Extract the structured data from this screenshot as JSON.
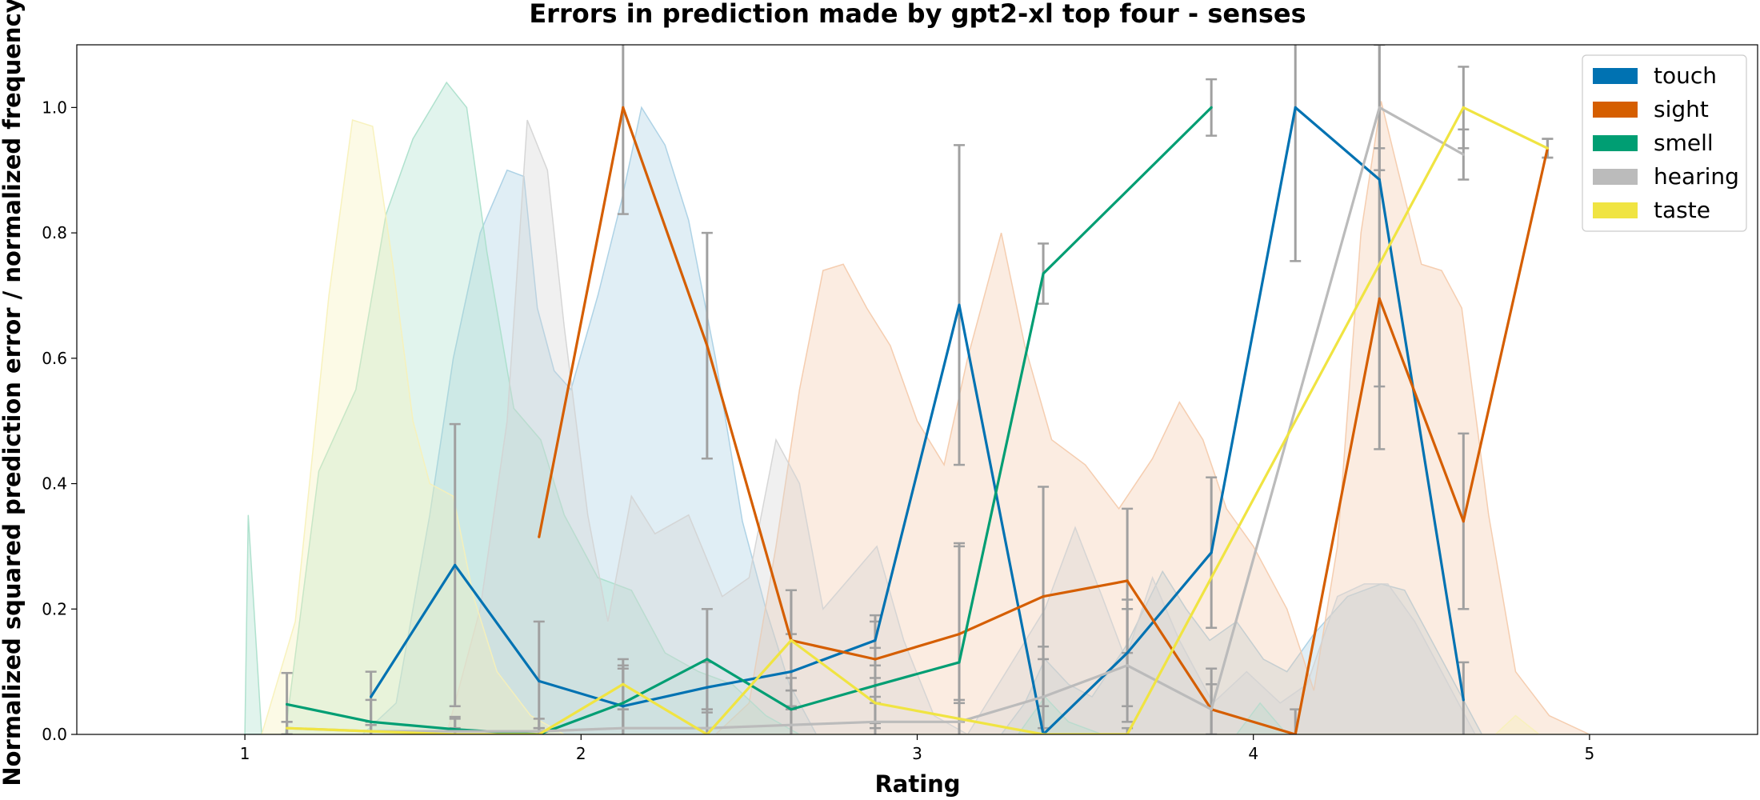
{
  "chart_data": {
    "type": "line",
    "title": "Errors in prediction made by gpt2-xl top four - senses",
    "xlabel": "Rating",
    "ylabel": "Normalized squared prediction error / normalized frequency",
    "xlim": [
      0.5,
      5.5
    ],
    "ylim": [
      0,
      1.1
    ],
    "xticks": [
      "1",
      "2",
      "3",
      "4",
      "5"
    ],
    "yticks": [
      "0.0",
      "0.2",
      "0.4",
      "0.6",
      "0.8",
      "1.0"
    ],
    "grid": false,
    "legend_position": "top-right",
    "series": [
      {
        "name": "touch",
        "color": "#0072b2",
        "x": [
          1.375,
          1.625,
          1.875,
          2.125,
          2.375,
          2.625,
          2.875,
          3.125,
          3.375,
          3.625,
          3.875,
          4.125,
          4.375,
          4.625
        ],
        "y": [
          0.06,
          0.27,
          0.085,
          0.045,
          0.075,
          0.1,
          0.15,
          0.685,
          0.0,
          0.13,
          0.29,
          1.0,
          0.885,
          0.055
        ],
        "error": [
          0.04,
          0.225,
          0.095,
          0.06,
          0.04,
          0.06,
          0.04,
          0.255,
          0.12,
          0.085,
          0.12,
          0.245,
          0.33,
          0.06
        ]
      },
      {
        "name": "sight",
        "color": "#d55e00",
        "x": [
          1.875,
          2.125,
          2.375,
          2.625,
          2.875,
          3.125,
          3.375,
          3.625,
          3.875,
          4.125,
          4.375,
          4.625,
          4.875
        ],
        "y": [
          0.315,
          1.0,
          0.62,
          0.15,
          0.12,
          0.16,
          0.22,
          0.245,
          0.04,
          0.0,
          0.695,
          0.34,
          0.935
        ],
        "error": [
          0.0,
          0.17,
          0.18,
          0.08,
          0.06,
          0.14,
          0.175,
          0.115,
          0.065,
          0.04,
          0.24,
          0.14,
          0.015
        ]
      },
      {
        "name": "smell",
        "color": "#009e73",
        "x": [
          1.125,
          1.375,
          1.625,
          1.875,
          2.125,
          2.375,
          2.625,
          2.875,
          3.125,
          3.375,
          3.875
        ],
        "y": [
          0.048,
          0.02,
          0.008,
          0.0,
          0.05,
          0.12,
          0.04,
          0.078,
          0.115,
          0.735,
          1.0
        ],
        "error": [
          0.05,
          0.035,
          0.02,
          0.01,
          0.06,
          0.08,
          0.05,
          0.06,
          0.19,
          0.048,
          0.045
        ]
      },
      {
        "name": "hearing",
        "color": "#bbbbbb",
        "x": [
          1.125,
          1.375,
          1.625,
          1.875,
          2.125,
          2.375,
          2.625,
          2.875,
          3.125,
          3.375,
          3.625,
          3.875,
          4.375,
          4.625
        ],
        "y": [
          0.01,
          0.005,
          0.005,
          0.005,
          0.01,
          0.01,
          0.015,
          0.02,
          0.02,
          0.06,
          0.11,
          0.04,
          1.0,
          0.925
        ],
        "error": [
          0.01,
          0.01,
          0.02,
          0.02,
          0.03,
          0.03,
          0.03,
          0.03,
          0.03,
          0.08,
          0.09,
          0.04,
          0.1,
          0.04
        ]
      },
      {
        "name": "taste",
        "color": "#f0e442",
        "x": [
          1.125,
          1.375,
          1.625,
          1.875,
          2.125,
          2.375,
          2.625,
          2.875,
          3.125,
          3.375,
          3.625,
          4.625,
          4.875
        ],
        "y": [
          0.01,
          0.005,
          0.0,
          0.0,
          0.08,
          0.0,
          0.15,
          0.05,
          0.025,
          0.0,
          0.0,
          1.0,
          0.935
        ],
        "error": [
          0.01,
          0.01,
          0.01,
          0.01,
          0.04,
          0.01,
          0.08,
          0.04,
          0.03,
          0.01,
          0.01,
          0.065,
          0.015
        ]
      }
    ],
    "density_series": [
      {
        "name": "touch",
        "color": "#a6cee3",
        "points": [
          [
            1.0,
            0
          ],
          [
            1.35,
            0
          ],
          [
            1.45,
            0.05
          ],
          [
            1.55,
            0.35
          ],
          [
            1.62,
            0.6
          ],
          [
            1.7,
            0.8
          ],
          [
            1.78,
            0.9
          ],
          [
            1.83,
            0.89
          ],
          [
            1.87,
            0.68
          ],
          [
            1.92,
            0.58
          ],
          [
            1.97,
            0.55
          ],
          [
            2.05,
            0.7
          ],
          [
            2.12,
            0.85
          ],
          [
            2.18,
            1.0
          ],
          [
            2.25,
            0.94
          ],
          [
            2.32,
            0.82
          ],
          [
            2.4,
            0.6
          ],
          [
            2.48,
            0.34
          ],
          [
            2.55,
            0.2
          ],
          [
            2.62,
            0.08
          ],
          [
            2.7,
            0.0
          ],
          [
            3.25,
            0
          ],
          [
            3.32,
            0.05
          ],
          [
            3.38,
            0.12
          ],
          [
            3.45,
            0.08
          ],
          [
            3.52,
            0.06
          ],
          [
            3.62,
            0.14
          ],
          [
            3.73,
            0.26
          ],
          [
            3.8,
            0.2
          ],
          [
            3.87,
            0.15
          ],
          [
            3.95,
            0.18
          ],
          [
            4.03,
            0.12
          ],
          [
            4.1,
            0.1
          ],
          [
            4.18,
            0.16
          ],
          [
            4.28,
            0.22
          ],
          [
            4.38,
            0.24
          ],
          [
            4.45,
            0.23
          ],
          [
            4.52,
            0.16
          ],
          [
            4.6,
            0.08
          ],
          [
            4.68,
            0.0
          ],
          [
            5.0,
            0
          ]
        ]
      },
      {
        "name": "sight",
        "color": "#f4c9a8",
        "points": [
          [
            2.4,
            0
          ],
          [
            2.5,
            0.05
          ],
          [
            2.58,
            0.3
          ],
          [
            2.65,
            0.55
          ],
          [
            2.72,
            0.74
          ],
          [
            2.78,
            0.75
          ],
          [
            2.85,
            0.68
          ],
          [
            2.92,
            0.62
          ],
          [
            3.0,
            0.5
          ],
          [
            3.08,
            0.43
          ],
          [
            3.15,
            0.6
          ],
          [
            3.25,
            0.8
          ],
          [
            3.32,
            0.62
          ],
          [
            3.4,
            0.47
          ],
          [
            3.5,
            0.43
          ],
          [
            3.6,
            0.36
          ],
          [
            3.7,
            0.44
          ],
          [
            3.78,
            0.53
          ],
          [
            3.85,
            0.47
          ],
          [
            3.92,
            0.36
          ],
          [
            4.0,
            0.3
          ],
          [
            4.1,
            0.2
          ],
          [
            4.18,
            0.07
          ],
          [
            4.25,
            0.3
          ],
          [
            4.32,
            0.8
          ],
          [
            4.38,
            1.01
          ],
          [
            4.43,
            0.9
          ],
          [
            4.5,
            0.75
          ],
          [
            4.56,
            0.74
          ],
          [
            4.62,
            0.68
          ],
          [
            4.7,
            0.35
          ],
          [
            4.78,
            0.1
          ],
          [
            4.88,
            0.03
          ],
          [
            5.0,
            0
          ]
        ]
      },
      {
        "name": "smell",
        "color": "#a9dfca",
        "points": [
          [
            1.0,
            0
          ],
          [
            1.01,
            0.35
          ],
          [
            1.05,
            0
          ],
          [
            1.12,
            0
          ],
          [
            1.22,
            0.42
          ],
          [
            1.33,
            0.55
          ],
          [
            1.42,
            0.83
          ],
          [
            1.5,
            0.95
          ],
          [
            1.6,
            1.04
          ],
          [
            1.66,
            1.0
          ],
          [
            1.72,
            0.77
          ],
          [
            1.8,
            0.52
          ],
          [
            1.88,
            0.47
          ],
          [
            1.95,
            0.35
          ],
          [
            2.05,
            0.25
          ],
          [
            2.15,
            0.23
          ],
          [
            2.25,
            0.13
          ],
          [
            2.35,
            0.1
          ],
          [
            2.45,
            0.08
          ],
          [
            2.55,
            0.03
          ],
          [
            2.65,
            0.0
          ],
          [
            3.3,
            0
          ],
          [
            3.38,
            0.06
          ],
          [
            3.45,
            0.02
          ],
          [
            3.55,
            0
          ],
          [
            3.95,
            0
          ],
          [
            4.02,
            0.05
          ],
          [
            4.1,
            0
          ],
          [
            5.0,
            0
          ]
        ]
      },
      {
        "name": "hearing",
        "color": "#d3d3d3",
        "points": [
          [
            1.6,
            0
          ],
          [
            1.7,
            0.2
          ],
          [
            1.78,
            0.5
          ],
          [
            1.84,
            0.98
          ],
          [
            1.9,
            0.9
          ],
          [
            1.95,
            0.65
          ],
          [
            2.02,
            0.35
          ],
          [
            2.08,
            0.18
          ],
          [
            2.15,
            0.38
          ],
          [
            2.22,
            0.32
          ],
          [
            2.32,
            0.35
          ],
          [
            2.42,
            0.22
          ],
          [
            2.5,
            0.25
          ],
          [
            2.58,
            0.47
          ],
          [
            2.65,
            0.4
          ],
          [
            2.72,
            0.2
          ],
          [
            2.8,
            0.25
          ],
          [
            2.88,
            0.3
          ],
          [
            2.96,
            0.15
          ],
          [
            3.05,
            0.03
          ],
          [
            3.15,
            0
          ],
          [
            3.38,
            0.2
          ],
          [
            3.47,
            0.33
          ],
          [
            3.55,
            0.22
          ],
          [
            3.62,
            0.12
          ],
          [
            3.7,
            0.25
          ],
          [
            3.78,
            0.15
          ],
          [
            3.88,
            0.05
          ],
          [
            3.98,
            0.1
          ],
          [
            4.08,
            0.05
          ],
          [
            4.16,
            0.08
          ],
          [
            4.25,
            0.22
          ],
          [
            4.33,
            0.24
          ],
          [
            4.4,
            0.24
          ],
          [
            4.48,
            0.18
          ],
          [
            4.58,
            0.08
          ],
          [
            4.66,
            0.0
          ],
          [
            5.0,
            0
          ]
        ]
      },
      {
        "name": "taste",
        "color": "#f7f1b8",
        "points": [
          [
            1.05,
            0
          ],
          [
            1.15,
            0.18
          ],
          [
            1.25,
            0.7
          ],
          [
            1.32,
            0.98
          ],
          [
            1.38,
            0.97
          ],
          [
            1.44,
            0.75
          ],
          [
            1.5,
            0.5
          ],
          [
            1.55,
            0.4
          ],
          [
            1.62,
            0.38
          ],
          [
            1.68,
            0.22
          ],
          [
            1.75,
            0.1
          ],
          [
            1.85,
            0.03
          ],
          [
            1.95,
            0.0
          ],
          [
            4.72,
            0
          ],
          [
            4.78,
            0.03
          ],
          [
            4.85,
            0.0
          ],
          [
            5.0,
            0
          ]
        ]
      }
    ]
  }
}
